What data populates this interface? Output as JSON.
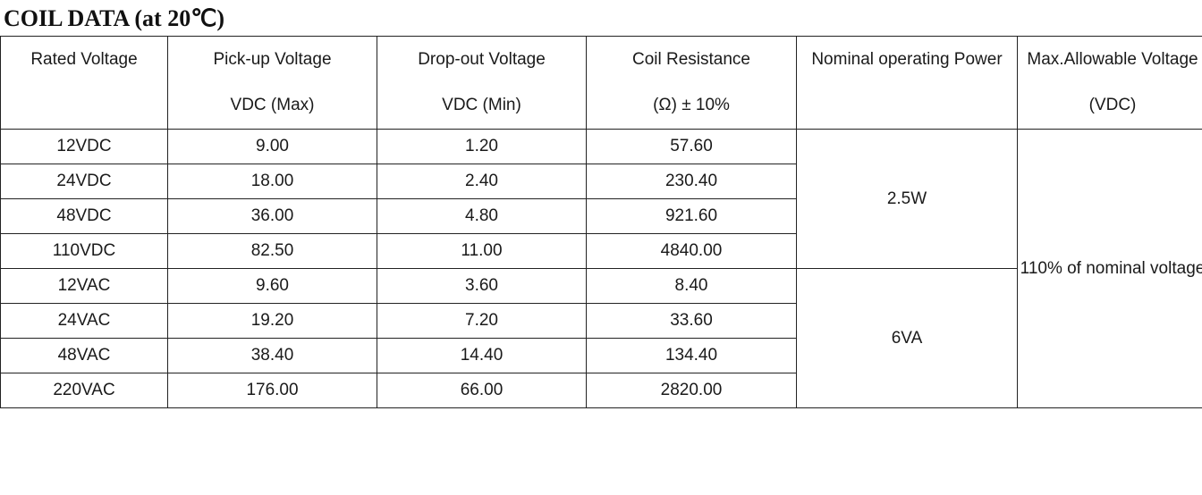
{
  "title": "COIL DATA (at 20℃)",
  "headers": {
    "rated": [
      "Rated Voltage",
      ""
    ],
    "pickup": [
      "Pick-up Voltage",
      "VDC (Max)"
    ],
    "dropout": [
      "Drop-out Voltage",
      "VDC (Min)"
    ],
    "resistance": [
      "Coil Resistance",
      "(Ω)  ± 10%"
    ],
    "power": [
      "Nominal operating Power",
      ""
    ],
    "maxv": [
      "Max.Allowable Voltage",
      "(VDC)"
    ]
  },
  "rows": [
    {
      "rated": "12VDC",
      "pickup": "9.00",
      "dropout": "1.20",
      "resistance": "57.60"
    },
    {
      "rated": "24VDC",
      "pickup": "18.00",
      "dropout": "2.40",
      "resistance": "230.40"
    },
    {
      "rated": "48VDC",
      "pickup": "36.00",
      "dropout": "4.80",
      "resistance": "921.60"
    },
    {
      "rated": "110VDC",
      "pickup": "82.50",
      "dropout": "11.00",
      "resistance": "4840.00"
    },
    {
      "rated": "12VAC",
      "pickup": "9.60",
      "dropout": "3.60",
      "resistance": "8.40"
    },
    {
      "rated": "24VAC",
      "pickup": "19.20",
      "dropout": "7.20",
      "resistance": "33.60"
    },
    {
      "rated": "48VAC",
      "pickup": "38.40",
      "dropout": "14.40",
      "resistance": "134.40"
    },
    {
      "rated": "220VAC",
      "pickup": "176.00",
      "dropout": "66.00",
      "resistance": "2820.00"
    }
  ],
  "power_groups": [
    "2.5W",
    "6VA"
  ],
  "max_allowable": "110% of nominal voltage"
}
